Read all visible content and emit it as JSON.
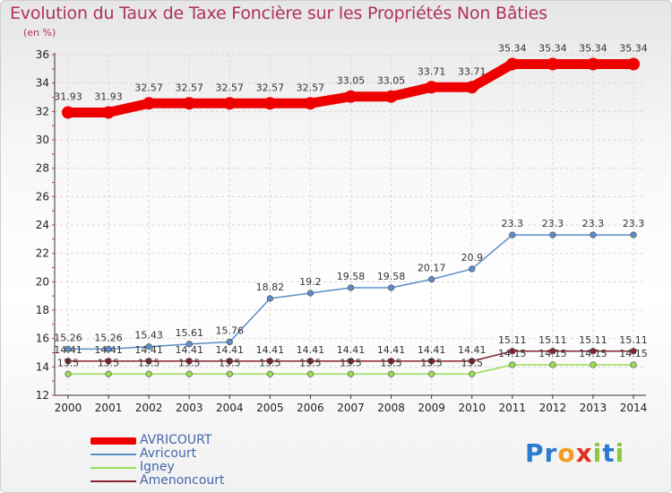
{
  "title": "Evolution du Taux de Taxe Foncière sur les Propriétés Non Bâties",
  "unit": "(en %)",
  "brand": {
    "letters": [
      "P",
      "r",
      "o",
      "x",
      "i",
      "t",
      "i"
    ],
    "colors": [
      "#2b7bd3",
      "#2b7bd3",
      "#f39b1e",
      "#e03020",
      "#8dc63f",
      "#2b7bd3",
      "#8dc63f"
    ]
  },
  "chart_data": {
    "type": "line",
    "title": "Evolution du Taux de Taxe Foncière sur les Propriétés Non Bâties",
    "ylabel": "(en %)",
    "ylim": [
      12,
      36
    ],
    "yticks": [
      12,
      14,
      16,
      18,
      20,
      22,
      24,
      26,
      28,
      30,
      32,
      34,
      36
    ],
    "x": [
      "2000",
      "2001",
      "2002",
      "2003",
      "2004",
      "2005",
      "2006",
      "2007",
      "2008",
      "2009",
      "2010",
      "2011",
      "2012",
      "2013",
      "2014"
    ],
    "grid": true,
    "series": [
      {
        "name": "AVRICOURT",
        "color": "#ee0000",
        "labels_above": true,
        "values": [
          31.93,
          31.93,
          32.57,
          32.57,
          32.57,
          32.57,
          32.57,
          33.05,
          33.05,
          33.71,
          33.71,
          35.34,
          35.34,
          35.34,
          35.34
        ],
        "labels": [
          "31.93",
          "31.93",
          "32.57",
          "32.57",
          "32.57",
          "32.57",
          "32.57",
          "33.05",
          "33.05",
          "33.71",
          "33.71",
          "35.34",
          "35.34",
          "35.34",
          "35.34"
        ]
      },
      {
        "name": "Avricourt",
        "color": "#5b8ec8",
        "labels_above": true,
        "values": [
          15.26,
          15.26,
          15.43,
          15.61,
          15.76,
          18.82,
          19.2,
          19.58,
          19.58,
          20.17,
          20.9,
          23.3,
          23.3,
          23.3,
          23.3
        ],
        "labels": [
          "15.26",
          "15.26",
          "15.43",
          "15.61",
          "15.76",
          "18.82",
          "19.2",
          "19.58",
          "19.58",
          "20.17",
          "20.9",
          "23.3",
          "23.3",
          "23.3",
          "23.3"
        ]
      },
      {
        "name": "Igney",
        "color": "#99dd55",
        "labels_above": true,
        "values": [
          13.5,
          13.5,
          13.5,
          13.5,
          13.5,
          13.5,
          13.5,
          13.5,
          13.5,
          13.5,
          13.5,
          14.15,
          14.15,
          14.15,
          14.15
        ],
        "labels": [
          "13.5",
          "13.5",
          "13.5",
          "13.5",
          "13.5",
          "13.5",
          "13.5",
          "13.5",
          "13.5",
          "13.5",
          "13.5",
          "14.15",
          "14.15",
          "14.15",
          "14.15"
        ]
      },
      {
        "name": "Amenoncourt",
        "color": "#882233",
        "labels_above": true,
        "values": [
          14.41,
          14.41,
          14.41,
          14.41,
          14.41,
          14.41,
          14.41,
          14.41,
          14.41,
          14.41,
          14.41,
          15.11,
          15.11,
          15.11,
          15.11
        ],
        "labels": [
          "14.41",
          "14.41",
          "14.41",
          "14.41",
          "14.41",
          "14.41",
          "14.41",
          "14.41",
          "14.41",
          "14.41",
          "14.41",
          "15.11",
          "15.11",
          "15.11",
          "15.11"
        ]
      }
    ]
  }
}
